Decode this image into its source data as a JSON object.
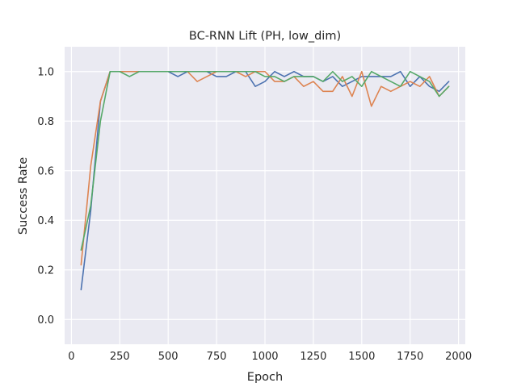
{
  "chart_data": {
    "type": "line",
    "title": "BC-RNN Lift (PH, low_dim)",
    "xlabel": "Epoch",
    "ylabel": "Success Rate",
    "xlim": [
      -35,
      2035
    ],
    "ylim": [
      -0.1,
      1.1
    ],
    "xticks": [
      0,
      250,
      500,
      750,
      1000,
      1250,
      1500,
      1750,
      2000
    ],
    "yticks": [
      0.0,
      0.2,
      0.4,
      0.6,
      0.8,
      1.0
    ],
    "xtick_labels": [
      "0",
      "250",
      "500",
      "750",
      "1000",
      "1250",
      "1500",
      "1750",
      "2000"
    ],
    "ytick_labels": [
      "0.0",
      "0.2",
      "0.4",
      "0.6",
      "0.8",
      "1.0"
    ],
    "grid": true,
    "background": "#eaeaf2",
    "x": [
      50,
      100,
      150,
      200,
      250,
      300,
      350,
      400,
      450,
      500,
      550,
      600,
      650,
      700,
      750,
      800,
      850,
      900,
      950,
      1000,
      1050,
      1100,
      1150,
      1200,
      1250,
      1300,
      1350,
      1400,
      1450,
      1500,
      1550,
      1600,
      1650,
      1700,
      1750,
      1800,
      1850,
      1900,
      1950
    ],
    "series": [
      {
        "color": "#4c72b0",
        "values": [
          0.12,
          0.44,
          0.88,
          1.0,
          1.0,
          1.0,
          1.0,
          1.0,
          1.0,
          1.0,
          0.98,
          1.0,
          1.0,
          1.0,
          0.98,
          0.98,
          1.0,
          1.0,
          0.94,
          0.96,
          1.0,
          0.98,
          1.0,
          0.98,
          0.98,
          0.96,
          0.98,
          0.94,
          0.96,
          0.98,
          0.98,
          0.98,
          0.98,
          1.0,
          0.94,
          0.98,
          0.94,
          0.92,
          0.96
        ]
      },
      {
        "color": "#dd8452",
        "values": [
          0.22,
          0.62,
          0.88,
          1.0,
          1.0,
          1.0,
          1.0,
          1.0,
          1.0,
          1.0,
          1.0,
          1.0,
          0.96,
          0.98,
          1.0,
          1.0,
          1.0,
          0.98,
          1.0,
          1.0,
          0.96,
          0.96,
          0.98,
          0.94,
          0.96,
          0.92,
          0.92,
          0.98,
          0.9,
          1.0,
          0.86,
          0.94,
          0.92,
          0.94,
          0.96,
          0.94,
          0.98,
          0.9,
          0.94
        ]
      },
      {
        "color": "#55a868",
        "values": [
          0.28,
          0.46,
          0.8,
          1.0,
          1.0,
          0.98,
          1.0,
          1.0,
          1.0,
          1.0,
          1.0,
          1.0,
          1.0,
          1.0,
          1.0,
          1.0,
          1.0,
          1.0,
          1.0,
          0.98,
          0.98,
          0.96,
          0.98,
          0.98,
          0.98,
          0.96,
          1.0,
          0.96,
          0.98,
          0.94,
          1.0,
          0.98,
          0.96,
          0.94,
          1.0,
          0.98,
          0.96,
          0.9,
          0.94
        ]
      }
    ]
  }
}
